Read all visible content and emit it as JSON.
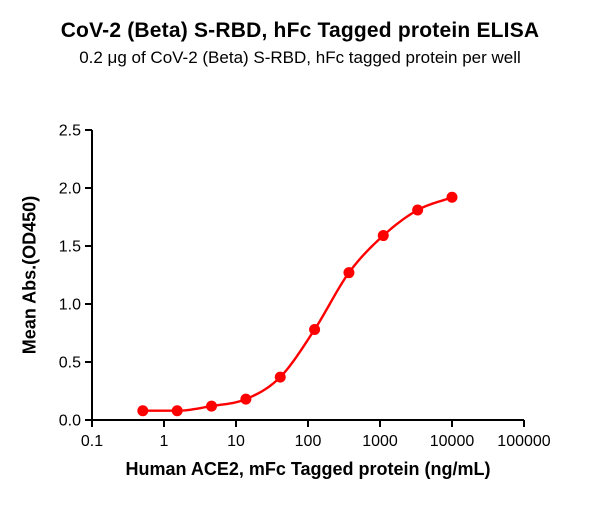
{
  "chart_data": {
    "type": "scatter",
    "title": "CoV-2 (Beta) S-RBD, hFc Tagged protein ELISA",
    "subtitle": "0.2 μg of CoV-2 (Beta) S-RBD, hFc tagged protein per well",
    "xlabel": "Human ACE2, mFc Tagged protein (ng/mL)",
    "ylabel": "Mean Abs.(OD450)",
    "x_scale": "log10",
    "xlim": [
      0.1,
      100000
    ],
    "ylim": [
      0.0,
      2.5
    ],
    "grid": "off",
    "legend": "none",
    "axis_color": "#000000",
    "x_ticks": {
      "values": [
        0.1,
        1,
        10,
        100,
        1000,
        10000,
        100000
      ],
      "labels": [
        "0.1",
        "1",
        "10",
        "100",
        "1000",
        "10000",
        "100000"
      ]
    },
    "y_ticks": {
      "values": [
        0,
        0.5,
        1,
        1.5,
        2,
        2.5
      ],
      "labels": [
        "0.0",
        "0.5",
        "1.0",
        "1.5",
        "2.0",
        "2.5"
      ]
    },
    "series": [
      {
        "marker": "circle",
        "color": "#FF0000",
        "line": "smooth-sigmoid-fit",
        "points": [
          {
            "x": 0.508,
            "y": 0.08
          },
          {
            "x": 1.524,
            "y": 0.08
          },
          {
            "x": 4.572,
            "y": 0.12
          },
          {
            "x": 13.717,
            "y": 0.18
          },
          {
            "x": 41.152,
            "y": 0.37
          },
          {
            "x": 123.457,
            "y": 0.78
          },
          {
            "x": 370.37,
            "y": 1.27
          },
          {
            "x": 1111.1,
            "y": 1.59
          },
          {
            "x": 3333.3,
            "y": 1.81
          },
          {
            "x": 10000,
            "y": 1.92
          }
        ]
      }
    ]
  }
}
